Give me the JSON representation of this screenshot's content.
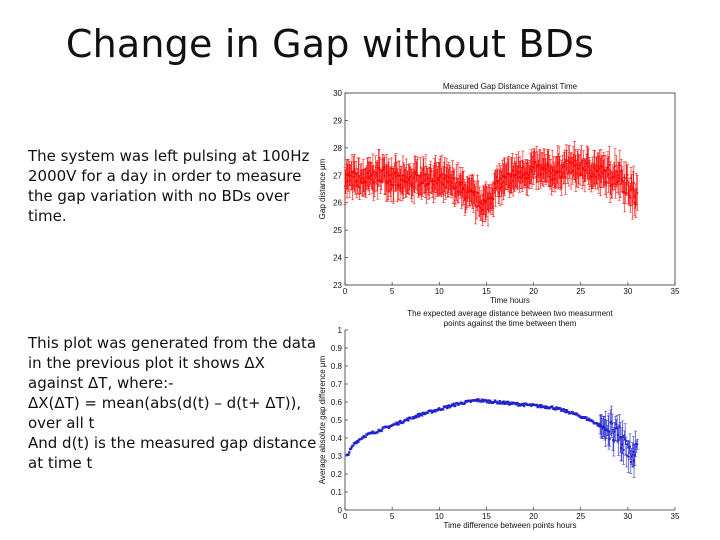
{
  "slide": {
    "title": "Change in Gap without BDs",
    "paragraph1": [
      "The system was left pulsing at 100Hz",
      "2000V for a day in order to measure",
      "the gap variation with no BDs over",
      "time."
    ],
    "paragraph2": [
      "This plot was generated from the data",
      "in the previous plot it shows ΔX",
      "against ΔT, where:-",
      "ΔX(ΔT) = mean(abs(d(t) – d(t+ ΔT)),",
      "over all t",
      "And d(t) is the measured gap distance",
      "at time t"
    ]
  },
  "chart_data": [
    {
      "type": "scatter",
      "title": "Measured Gap Distance Against Time",
      "xlabel": "Time hours",
      "ylabel": "Gap distance μm",
      "xlim": [
        0,
        35
      ],
      "ylim": [
        23,
        30
      ],
      "xticks": [
        0,
        5,
        10,
        15,
        20,
        25,
        30,
        35
      ],
      "yticks": [
        23,
        24,
        25,
        26,
        27,
        28,
        29,
        30
      ],
      "color": "#ff0000",
      "error_bars": true,
      "series": [
        {
          "name": "gap",
          "x": [
            0,
            2,
            4,
            6,
            8,
            10,
            12,
            13,
            14,
            15,
            16,
            18,
            20,
            22,
            24,
            26,
            28,
            29,
            30,
            31
          ],
          "y": [
            26.9,
            26.8,
            27.1,
            26.7,
            26.9,
            26.8,
            26.6,
            26.3,
            26.1,
            25.9,
            26.6,
            27.0,
            27.2,
            27.1,
            27.3,
            27.2,
            27.0,
            27.1,
            26.6,
            26.2
          ]
        }
      ]
    },
    {
      "type": "scatter",
      "title": "The expected average distance between two measurment points against the time between them",
      "title_lines": [
        "The expected average distance between two measurment",
        "points against the time between them"
      ],
      "xlabel": "Time difference between points hours",
      "ylabel": "Average absolute gap difference μm",
      "xlim": [
        0,
        35
      ],
      "ylim": [
        0,
        1
      ],
      "xticks": [
        0,
        5,
        10,
        15,
        20,
        25,
        30,
        35
      ],
      "yticks": [
        0,
        0.1,
        0.2,
        0.3,
        0.4,
        0.5,
        0.6,
        0.7,
        0.8,
        0.9,
        1
      ],
      "color": "#2222cc",
      "error_bars": true,
      "series": [
        {
          "name": "average absolute gap difference",
          "x": [
            0.2,
            1,
            2,
            4,
            6,
            8,
            10,
            12,
            14,
            16,
            18,
            20,
            22,
            24,
            26,
            28,
            29,
            30,
            31
          ],
          "y": [
            0.3,
            0.37,
            0.41,
            0.45,
            0.49,
            0.53,
            0.56,
            0.59,
            0.61,
            0.6,
            0.59,
            0.58,
            0.57,
            0.54,
            0.5,
            0.44,
            0.4,
            0.35,
            0.3
          ]
        }
      ]
    }
  ]
}
